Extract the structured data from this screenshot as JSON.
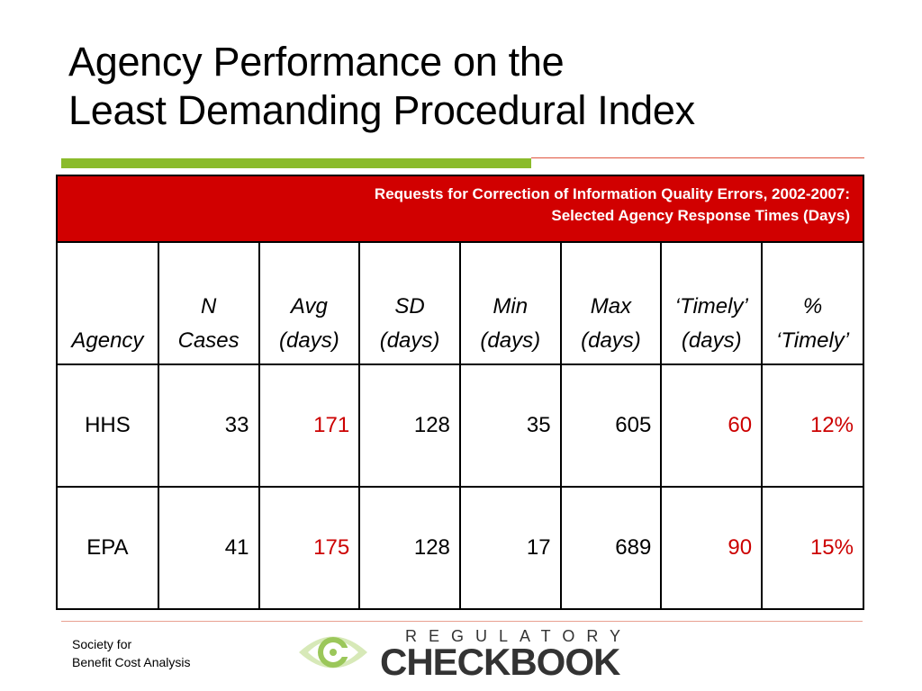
{
  "title": {
    "line1": "Agency Performance on the",
    "line2": "Least Demanding Procedural Index"
  },
  "table": {
    "caption_line1": "Requests for Correction of Information Quality Errors, 2002-2007:",
    "caption_line2": "Selected Agency Response Times (Days)",
    "headers": [
      {
        "line1": "",
        "line2": "Agency"
      },
      {
        "line1": "N",
        "line2": "Cases"
      },
      {
        "line1": "Avg",
        "line2": "(days)"
      },
      {
        "line1": "SD",
        "line2": "(days)"
      },
      {
        "line1": "Min",
        "line2": "(days)"
      },
      {
        "line1": "Max",
        "line2": "(days)"
      },
      {
        "line1": "‘Timely’",
        "line2": "(days)"
      },
      {
        "line1": "%",
        "line2": "‘Timely’"
      }
    ],
    "rows": [
      {
        "agency": "HHS",
        "n_cases": "33",
        "avg": "171",
        "sd": "128",
        "min": "35",
        "max": "605",
        "timely": "60",
        "pct_timely": "12%"
      },
      {
        "agency": "EPA",
        "n_cases": "41",
        "avg": "175",
        "sd": "128",
        "min": "17",
        "max": "689",
        "timely": "90",
        "pct_timely": "15%"
      }
    ]
  },
  "footer": {
    "org_line1": "Society for",
    "org_line2": "Benefit Cost Analysis",
    "logo_word1": "REGULATORY",
    "logo_word2": "CHECKBOOK"
  },
  "colors": {
    "accent_red": "#d10000",
    "highlight_red": "#cc0000",
    "rule_green": "#8bbb2b"
  }
}
